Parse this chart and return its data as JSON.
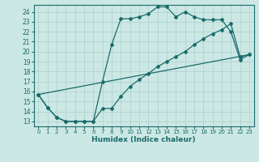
{
  "xlabel": "Humidex (Indice chaleur)",
  "bg_color": "#cce8e4",
  "grid_color": "#aacfcc",
  "line_color": "#1a6b6b",
  "spine_color": "#1a6b6b",
  "xlim": [
    -0.5,
    23.5
  ],
  "ylim": [
    12.5,
    24.7
  ],
  "xticks": [
    0,
    1,
    2,
    3,
    4,
    5,
    6,
    7,
    8,
    9,
    10,
    11,
    12,
    13,
    14,
    15,
    16,
    17,
    18,
    19,
    20,
    21,
    22,
    23
  ],
  "yticks": [
    13,
    14,
    15,
    16,
    17,
    18,
    19,
    20,
    21,
    22,
    23,
    24
  ],
  "line1_x": [
    0,
    1,
    2,
    3,
    4,
    5,
    6,
    7,
    8,
    9,
    10,
    11,
    12,
    13,
    14,
    15,
    16,
    17,
    18,
    19,
    20,
    21,
    22,
    23
  ],
  "line1_y": [
    15.7,
    14.4,
    13.4,
    13.0,
    13.0,
    13.0,
    13.0,
    17.0,
    20.7,
    23.3,
    23.3,
    23.5,
    23.8,
    24.5,
    24.5,
    23.5,
    24.0,
    23.5,
    23.2,
    23.2,
    23.2,
    22.0,
    19.2,
    19.7
  ],
  "line2_x": [
    0,
    1,
    2,
    3,
    4,
    5,
    6,
    7,
    8,
    9,
    10,
    11,
    12,
    13,
    14,
    15,
    16,
    17,
    18,
    19,
    20,
    21,
    22,
    23
  ],
  "line2_y": [
    15.7,
    14.4,
    13.4,
    13.0,
    13.0,
    13.0,
    13.0,
    14.3,
    14.3,
    15.5,
    16.5,
    17.2,
    17.8,
    18.5,
    19.0,
    19.5,
    20.0,
    20.7,
    21.3,
    21.8,
    22.2,
    22.8,
    19.5,
    19.7
  ],
  "line3_x": [
    0,
    23
  ],
  "line3_y": [
    15.7,
    19.7
  ]
}
